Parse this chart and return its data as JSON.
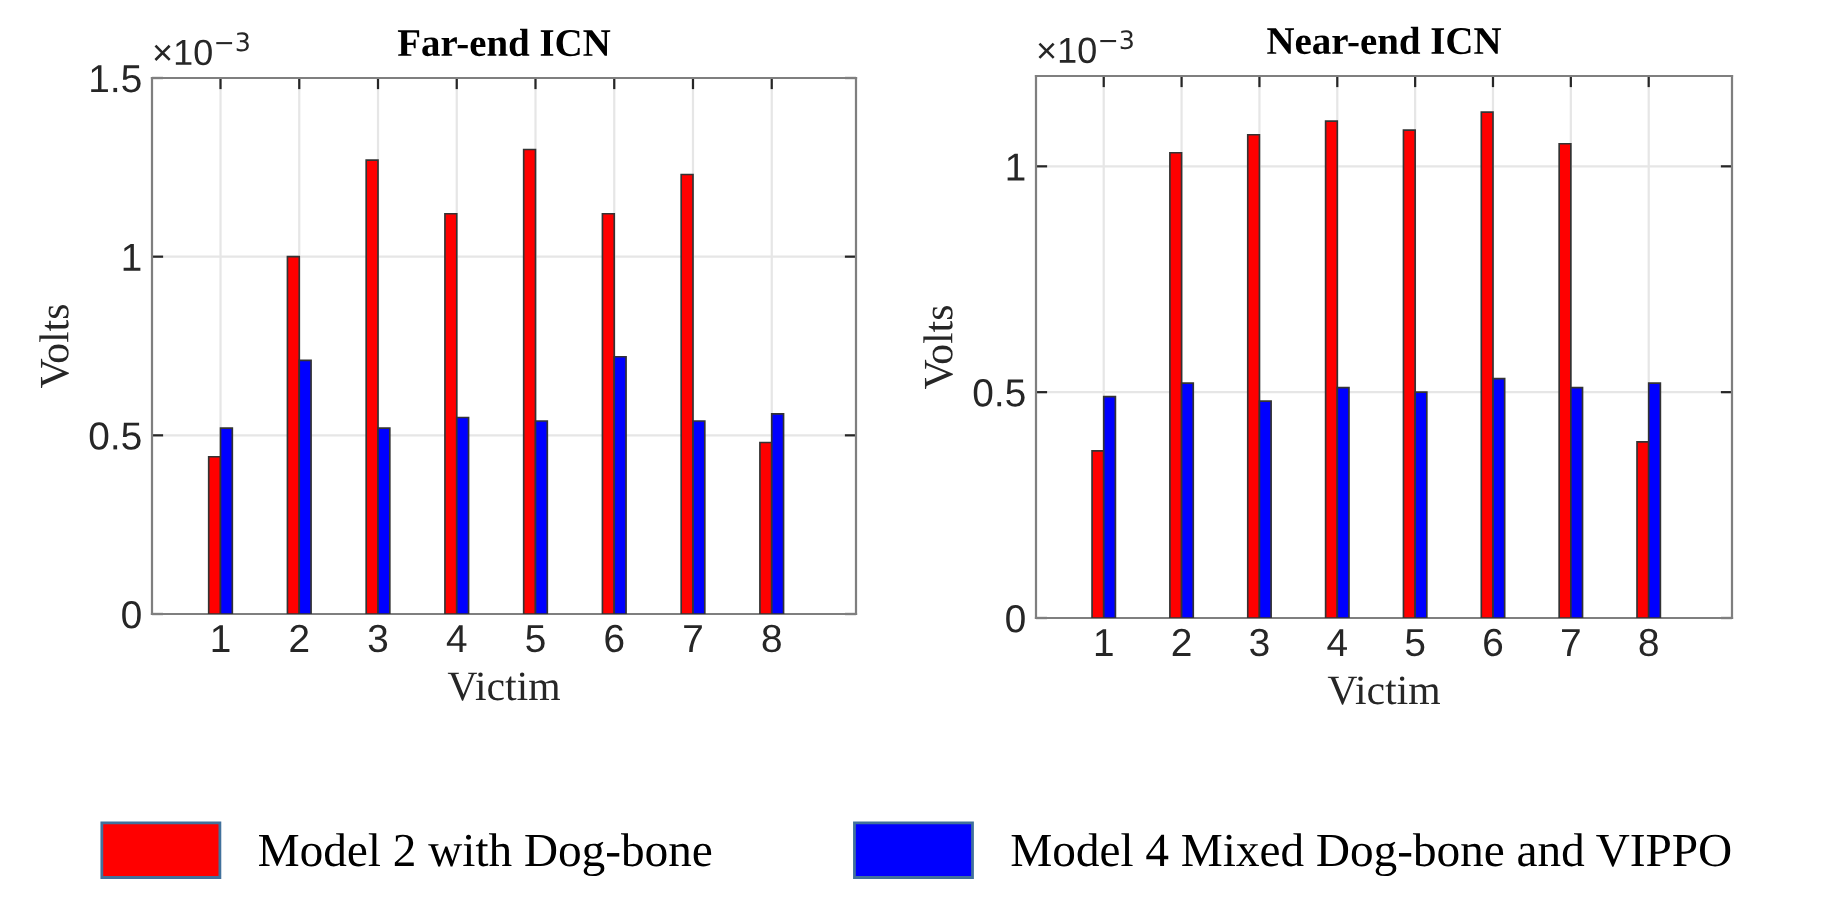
{
  "chart_data": [
    {
      "type": "bar",
      "title": "Far-end ICN",
      "xlabel": "Victim",
      "ylabel": "Volts",
      "annotations": [
        "×10$^{−3}$"
      ],
      "categories": [
        "1",
        "2",
        "3",
        "4",
        "5",
        "6",
        "7",
        "8"
      ],
      "ylim": [
        0,
        1.5
      ],
      "yticks": [
        0,
        0.5,
        1,
        1.5
      ],
      "grid": true,
      "legend": "bottom",
      "series": [
        {
          "name": "Model 2 with Dog-bone",
          "color": "#ff0000",
          "values": [
            0.44,
            1.0,
            1.27,
            1.12,
            1.3,
            1.12,
            1.23,
            0.48
          ]
        },
        {
          "name": "Model 4 Mixed Dog-bone and VIPPO",
          "color": "#0000ff",
          "values": [
            0.52,
            0.71,
            0.52,
            0.55,
            0.54,
            0.72,
            0.54,
            0.56
          ]
        }
      ]
    },
    {
      "type": "bar",
      "title": "Near-end ICN",
      "xlabel": "Victim",
      "ylabel": "Volts",
      "annotations": [
        "×10$^{−3}$"
      ],
      "categories": [
        "1",
        "2",
        "3",
        "4",
        "5",
        "6",
        "7",
        "8"
      ],
      "ylim": [
        0,
        1.2
      ],
      "yticks": [
        0,
        0.5,
        1
      ],
      "grid": true,
      "legend": "bottom",
      "series": [
        {
          "name": "Model 2 with Dog-bone",
          "color": "#ff0000",
          "values": [
            0.37,
            1.03,
            1.07,
            1.1,
            1.08,
            1.12,
            1.05,
            0.39
          ]
        },
        {
          "name": "Model 4 Mixed Dog-bone and VIPPO",
          "color": "#0000ff",
          "values": [
            0.49,
            0.52,
            0.48,
            0.51,
            0.5,
            0.53,
            0.51,
            0.52
          ]
        }
      ]
    }
  ]
}
